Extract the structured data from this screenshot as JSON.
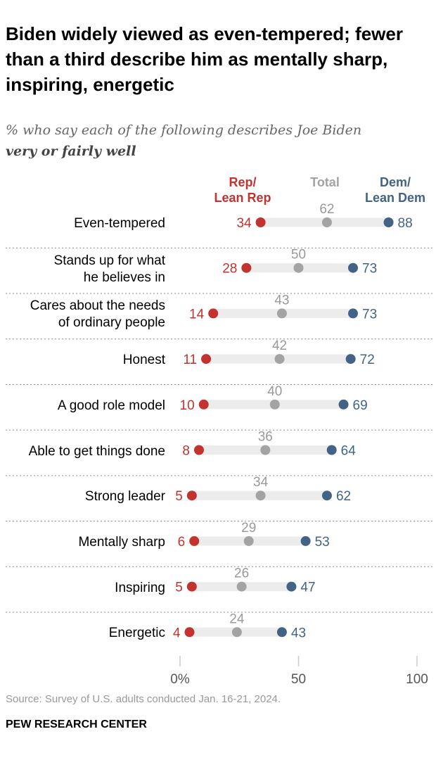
{
  "title": "Biden widely viewed as even-tempered; fewer than a third describe him as mentally sharp, inspiring, energetic",
  "subtitle": "% who say each of the following describes Joe Biden",
  "subtitle_emphasis": "very or fairly well",
  "source": "Source: Survey of U.S. adults conducted Jan. 16-21, 2024.",
  "brand": "PEW RESEARCH CENTER",
  "colors": {
    "rep": "#c2332f",
    "total": "#a3a3a3",
    "dem": "#426385",
    "track": "#ececec",
    "divider": "#8a8a8a",
    "axis": "#cccccc"
  },
  "chart_data": {
    "type": "dot",
    "categories": [
      "Even-tempered",
      "Stands up for what he believes in",
      "Cares about the needs of ordinary people",
      "Honest",
      "A good role model",
      "Able to get things done",
      "Strong leader",
      "Mentally sharp",
      "Inspiring",
      "Energetic"
    ],
    "category_lines": [
      [
        "Even-tempered"
      ],
      [
        "Stands up for what",
        "he believes in"
      ],
      [
        "Cares about the needs",
        "of ordinary people"
      ],
      [
        "Honest"
      ],
      [
        "A good role model"
      ],
      [
        "Able to get things done"
      ],
      [
        "Strong leader"
      ],
      [
        "Mentally sharp"
      ],
      [
        "Inspiring"
      ],
      [
        "Energetic"
      ]
    ],
    "series": [
      {
        "name": "Rep/ Lean Rep",
        "legend_lines": [
          "Rep/",
          "Lean Rep"
        ],
        "values": [
          34,
          28,
          14,
          11,
          10,
          8,
          5,
          6,
          5,
          4
        ]
      },
      {
        "name": "Total",
        "legend_lines": [
          "Total"
        ],
        "values": [
          62,
          50,
          43,
          42,
          40,
          36,
          34,
          29,
          26,
          24
        ]
      },
      {
        "name": "Dem/ Lean Dem",
        "legend_lines": [
          "Dem/",
          "Lean Dem"
        ],
        "values": [
          88,
          73,
          73,
          72,
          69,
          64,
          62,
          53,
          47,
          43
        ]
      }
    ],
    "xlim": [
      0,
      100
    ],
    "ticks": [
      0,
      50,
      100
    ],
    "tick_labels": [
      "0%",
      "50",
      "100"
    ]
  }
}
